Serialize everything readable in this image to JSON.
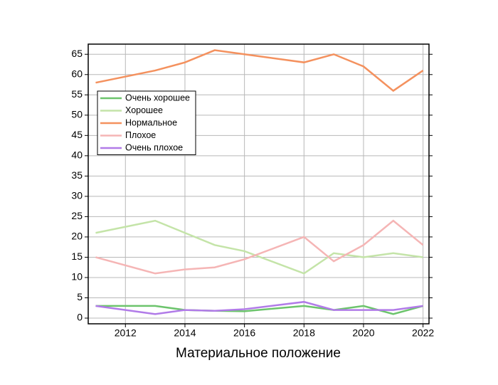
{
  "chart_data": {
    "type": "line",
    "x_label": "Материальное положение",
    "x": [
      2011,
      2013,
      2014,
      2015,
      2016,
      2018,
      2019,
      2020,
      2021,
      2022
    ],
    "series": [
      {
        "name": "Очень хорошее",
        "color": "#6cc46c",
        "values": [
          3,
          3,
          2,
          1.8,
          1.7,
          3,
          2,
          3,
          1,
          3
        ]
      },
      {
        "name": "Хорошее",
        "color": "#c4e4a8",
        "values": [
          21,
          24,
          21,
          18,
          16.5,
          11,
          16,
          15,
          16,
          15
        ]
      },
      {
        "name": "Нормальное",
        "color": "#f4915e",
        "values": [
          58,
          61,
          63,
          66,
          65,
          63,
          65,
          62,
          56,
          61
        ]
      },
      {
        "name": "Плохое",
        "color": "#f5b5b5",
        "values": [
          15,
          11,
          12,
          12.5,
          14.5,
          20,
          14,
          18,
          24,
          18
        ]
      },
      {
        "name": "Очень плохое",
        "color": "#b17be8",
        "values": [
          3,
          1,
          2,
          1.8,
          2.2,
          4,
          2,
          2,
          2,
          3
        ]
      }
    ],
    "xlim": [
      2010.75,
      2022.2
    ],
    "xticks": [
      2012,
      2014,
      2016,
      2018,
      2020,
      2022
    ],
    "ylim": [
      -1.4,
      67.5
    ],
    "yticks": [
      0,
      5,
      10,
      15,
      20,
      25,
      30,
      35,
      40,
      45,
      50,
      55,
      60,
      65
    ],
    "grid": true,
    "legend": "upper left"
  }
}
